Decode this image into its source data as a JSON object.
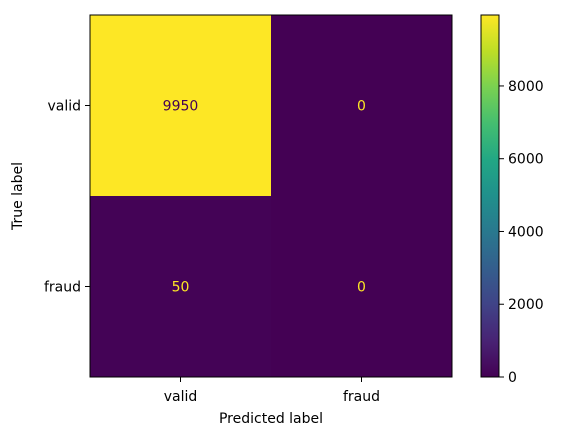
{
  "chart_data": {
    "type": "heatmap",
    "title": "",
    "xlabel": "Predicted label",
    "ylabel": "True label",
    "x_categories": [
      "valid",
      "fraud"
    ],
    "y_categories": [
      "valid",
      "fraud"
    ],
    "values": [
      [
        9950,
        0
      ],
      [
        50,
        0
      ]
    ],
    "colormap": "viridis",
    "colorbar": {
      "range": [
        0,
        9950
      ],
      "ticks": [
        0,
        2000,
        4000,
        6000,
        8000
      ]
    },
    "text_colors": {
      "on_dark": "#fde725",
      "on_light": "#440154"
    }
  }
}
